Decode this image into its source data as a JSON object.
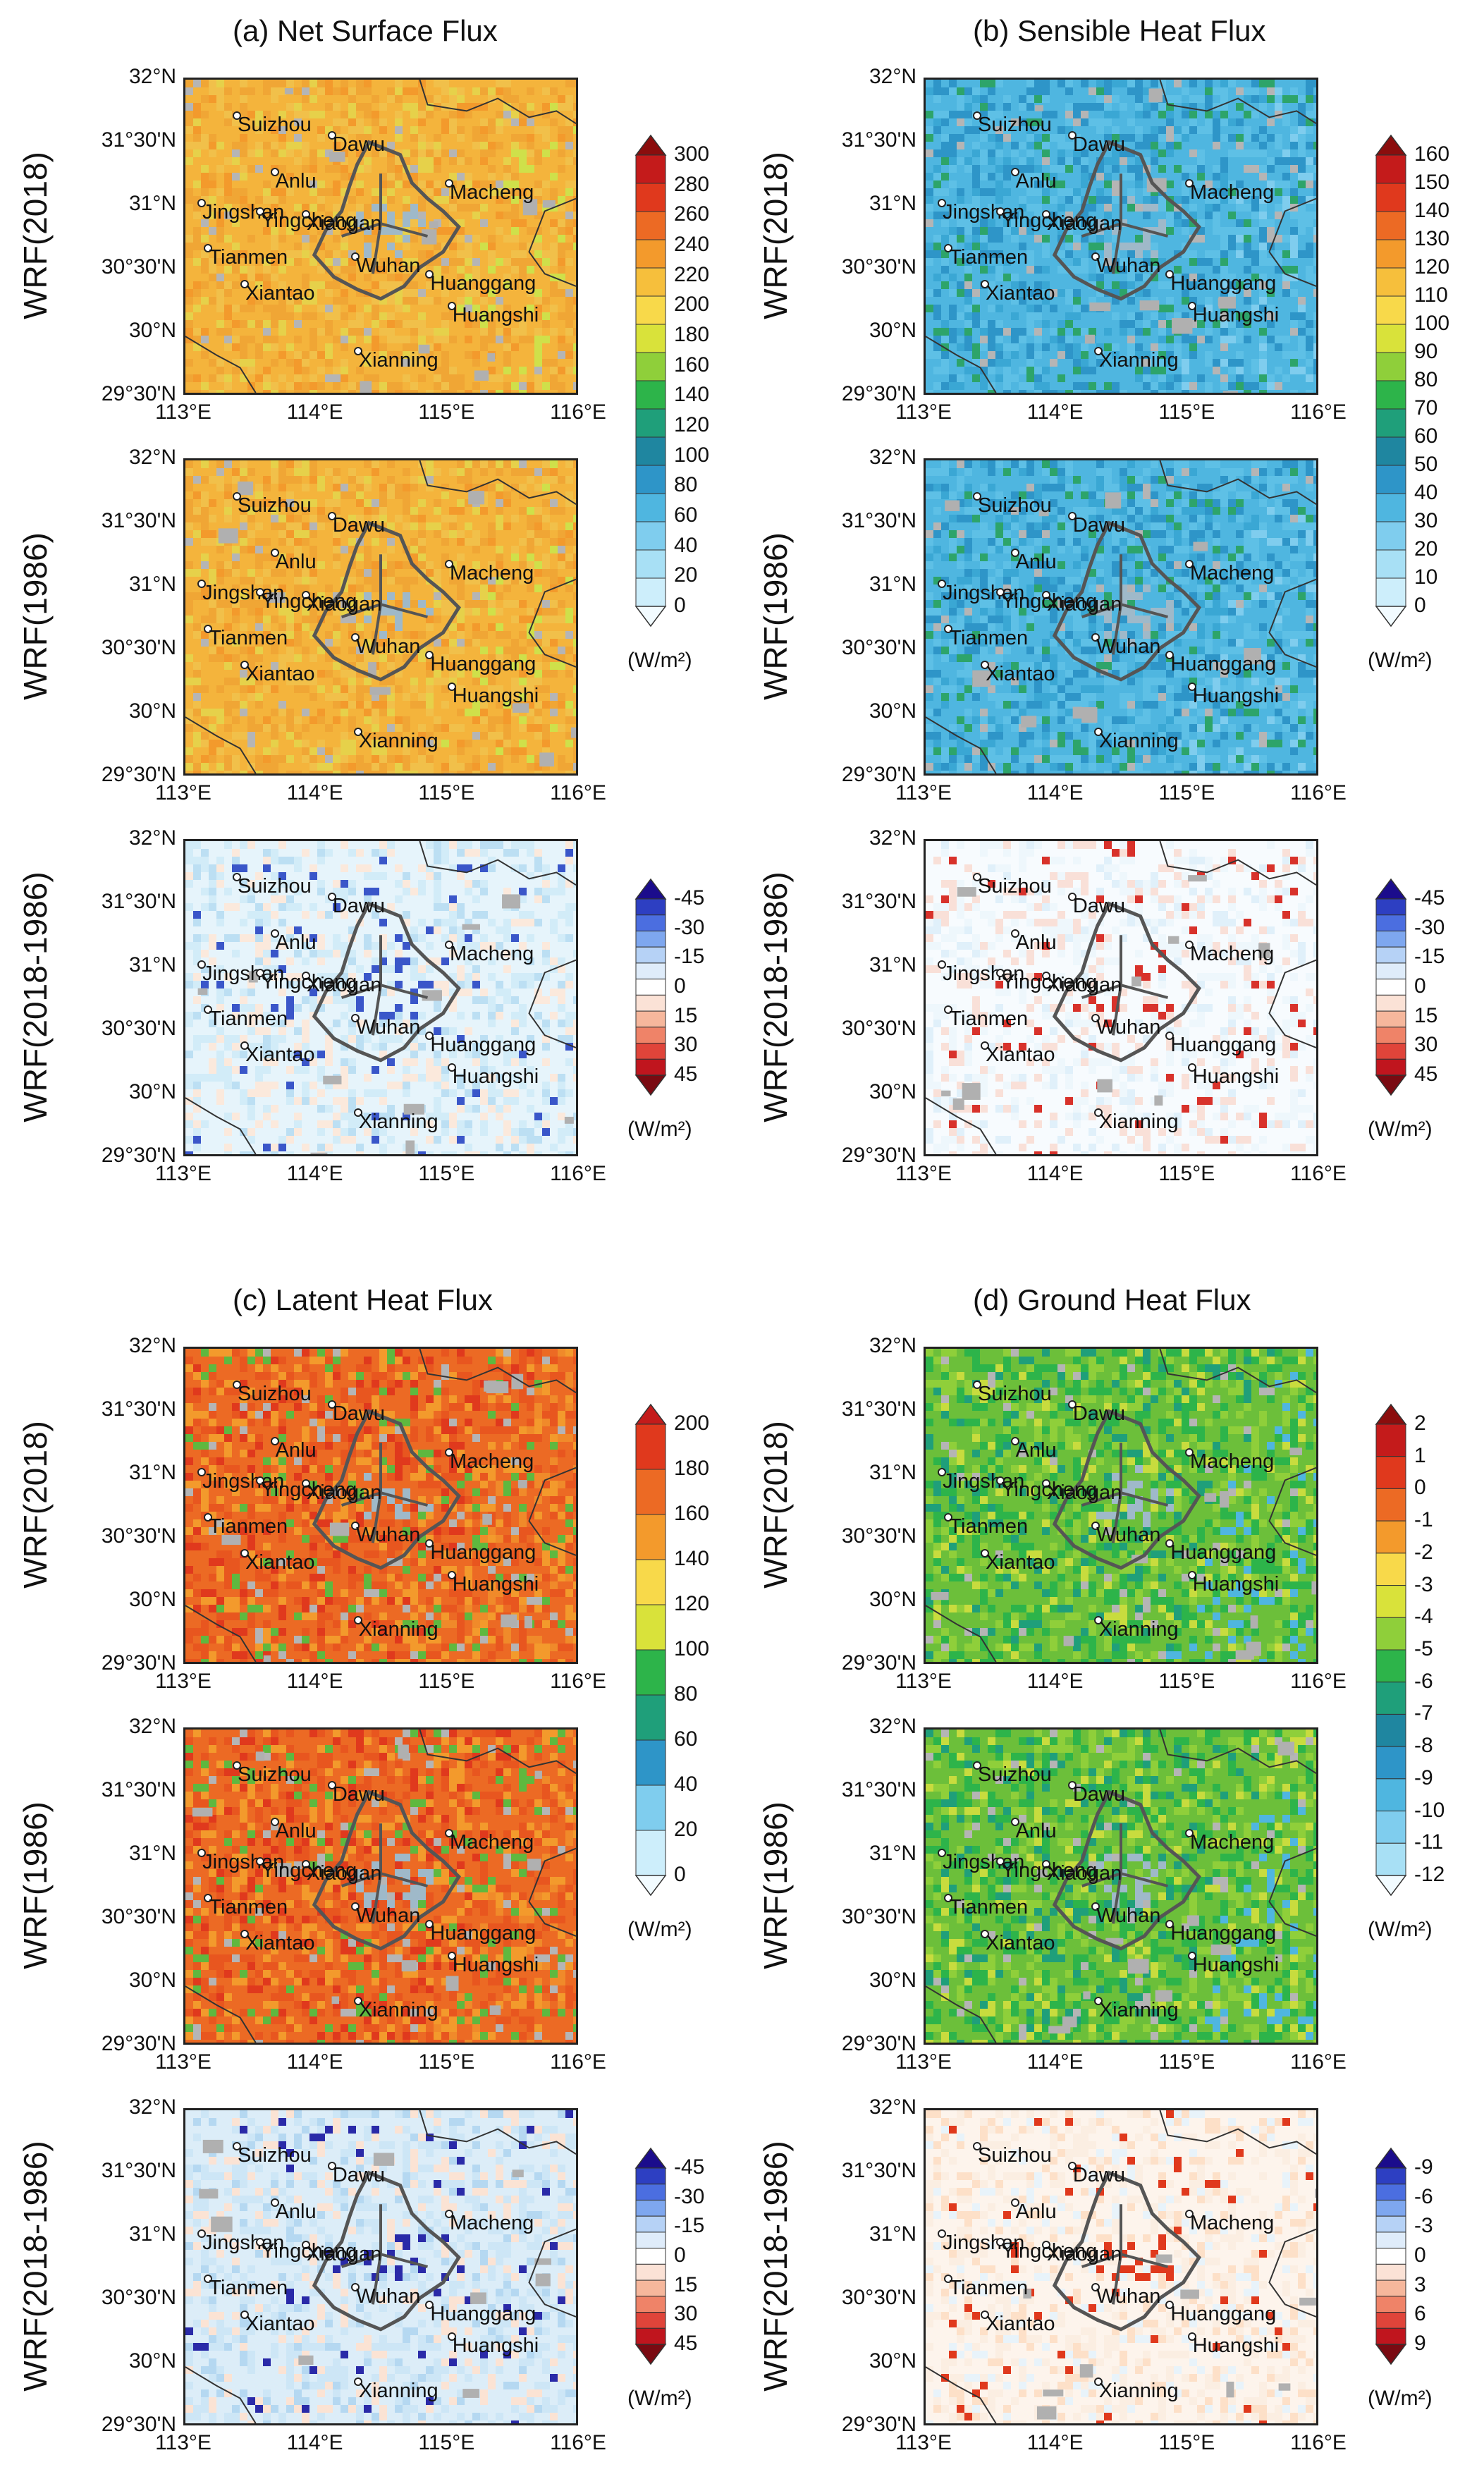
{
  "figure": {
    "panels": [
      {
        "id": "a",
        "title": "(a) Net Surface Flux",
        "colorbar": {
          "labels": [
            "0",
            "20",
            "40",
            "60",
            "80",
            "100",
            "120",
            "140",
            "160",
            "180",
            "200",
            "220",
            "240",
            "260",
            "280",
            "300"
          ],
          "colors": [
            "#f2fbff",
            "#cdeefb",
            "#a8e0f5",
            "#7fcdee",
            "#4fb6e0",
            "#2e95c8",
            "#1f86a0",
            "#1f9f7a",
            "#2db44a",
            "#8fcf3a",
            "#d9e23a",
            "#f8d94a",
            "#f6bf3c",
            "#f39a2c",
            "#ec6a24",
            "#e0391d",
            "#c41b1b",
            "#8b0d0d"
          ],
          "unit": "(W/m²)"
        },
        "base": [
          "#f4b43c",
          "#f0a635",
          "#f1c04a",
          "#e6d14a",
          "#f39a2c",
          "#cfe04a"
        ],
        "diff_base": [
          "#e6f4fb",
          "#d2ecf8",
          "#f2fbff",
          "#fbe9dc",
          "#bcdff3",
          "#3a56c9"
        ]
      },
      {
        "id": "b",
        "title": "(b) Sensible Heat Flux",
        "colorbar": {
          "labels": [
            "0",
            "10",
            "20",
            "30",
            "40",
            "50",
            "60",
            "70",
            "80",
            "90",
            "100",
            "110",
            "120",
            "130",
            "140",
            "150",
            "160"
          ],
          "colors": [
            "#f2fbff",
            "#cdeefb",
            "#a8e0f5",
            "#7fcdee",
            "#4fb6e0",
            "#2e95c8",
            "#1f86a0",
            "#1f9f7a",
            "#2db44a",
            "#8fcf3a",
            "#d9e23a",
            "#f8d94a",
            "#f6bf3c",
            "#f39a2c",
            "#ec6a24",
            "#e0391d",
            "#c41b1b",
            "#8b0d0d"
          ],
          "unit": "(W/m²)"
        },
        "base": [
          "#4fb6e0",
          "#5ec0e6",
          "#2e95c8",
          "#3aa7d4",
          "#2da46a",
          "#7fcdee"
        ],
        "diff_base": [
          "#f7fbfe",
          "#eef7fc",
          "#fff6f2",
          "#f9e0d8",
          "#e0f0fa",
          "#d8322b"
        ]
      },
      {
        "id": "c",
        "title": "(c) Latent Heat Flux",
        "colorbar": {
          "labels": [
            "0",
            "20",
            "40",
            "60",
            "80",
            "100",
            "120",
            "140",
            "160",
            "180",
            "200"
          ],
          "colors": [
            "#f2fbff",
            "#cdeefb",
            "#7fcdee",
            "#2e95c8",
            "#1f9f7a",
            "#2db44a",
            "#d9e23a",
            "#f8d94a",
            "#f39a2c",
            "#ec6a24",
            "#e0391d",
            "#c41b1b"
          ],
          "unit": "(W/m²)"
        },
        "base": [
          "#ec6a24",
          "#e8561f",
          "#f39a2c",
          "#e0391d",
          "#5fb83f",
          "#f08a2a"
        ],
        "diff_base": [
          "#dcedf8",
          "#cde6f6",
          "#f2fbff",
          "#fbe3d4",
          "#b5d8f1",
          "#2a2aa8"
        ]
      },
      {
        "id": "d",
        "title": "(d) Ground Heat Flux",
        "colorbar": {
          "labels": [
            "-12",
            "-11",
            "-10",
            "-9",
            "-8",
            "-7",
            "-6",
            "-5",
            "-4",
            "-3",
            "-2",
            "-1",
            "0",
            "1",
            "2"
          ],
          "colors": [
            "#f2fbff",
            "#a8e0f5",
            "#7fcdee",
            "#4fb6e0",
            "#2e95c8",
            "#1f86a0",
            "#1f9f7a",
            "#2db44a",
            "#8fcf3a",
            "#d9e23a",
            "#f8d94a",
            "#f39a2c",
            "#ec6a24",
            "#e0391d",
            "#c41b1b",
            "#8b0d0d"
          ],
          "unit": "(W/m²)"
        },
        "base": [
          "#6cbf3a",
          "#2db44a",
          "#8fcf3a",
          "#1f9f7a",
          "#c8dc3e",
          "#4fb6e0"
        ],
        "diff_base": [
          "#fdf4ec",
          "#fbeee2",
          "#f7fbfe",
          "#fde0c8",
          "#e8f3fa",
          "#e0391d"
        ]
      }
    ],
    "row_labels": {
      "y2018": "WRF(2018)",
      "y1986": "WRF(1986)",
      "diff": "WRF(2018-1986)"
    },
    "diff_colorbar": {
      "labels_ac": [
        "45",
        "30",
        "15",
        "0",
        "-15",
        "-30",
        "-45"
      ],
      "labels_b": [
        "45",
        "30",
        "15",
        "0",
        "-15",
        "-30",
        "-45"
      ],
      "labels_d": [
        "9",
        "6",
        "3",
        "0",
        "-3",
        "-6",
        "-9"
      ],
      "colors": [
        "#1b0c8c",
        "#2d3fc2",
        "#4b6ee0",
        "#7ea7ef",
        "#b6d2f6",
        "#dfecfa",
        "#ffffff",
        "#fbe2d6",
        "#f6b79c",
        "#ef8368",
        "#e0443a",
        "#c0151e",
        "#7a0a12"
      ],
      "unit": "(W/m²)"
    },
    "lat_labels": [
      "32°N",
      "31°30'N",
      "31°N",
      "30°30'N",
      "30°N",
      "29°30'N"
    ],
    "lon_labels": [
      "113°E",
      "114°E",
      "115°E",
      "116°E"
    ],
    "cities": [
      {
        "name": "Suizhou",
        "lon": 113.39,
        "lat": 31.72
      },
      {
        "name": "Dawu",
        "lon": 114.12,
        "lat": 31.56
      },
      {
        "name": "Anlu",
        "lon": 113.68,
        "lat": 31.27
      },
      {
        "name": "Jingshan",
        "lon": 113.12,
        "lat": 31.02
      },
      {
        "name": "Xiaogan",
        "lon": 113.92,
        "lat": 30.93
      },
      {
        "name": "Macheng",
        "lon": 115.02,
        "lat": 31.18
      },
      {
        "name": "Yingcheng",
        "lon": 113.57,
        "lat": 30.95
      },
      {
        "name": "Tianmen",
        "lon": 113.17,
        "lat": 30.66
      },
      {
        "name": "Xiantao",
        "lon": 113.45,
        "lat": 30.37
      },
      {
        "name": "Wuhan",
        "lon": 114.3,
        "lat": 30.59
      },
      {
        "name": "Huanggang",
        "lon": 114.87,
        "lat": 30.45
      },
      {
        "name": "Huangshi",
        "lon": 115.04,
        "lat": 30.2
      },
      {
        "name": "Xianning",
        "lon": 114.32,
        "lat": 29.84
      }
    ]
  }
}
